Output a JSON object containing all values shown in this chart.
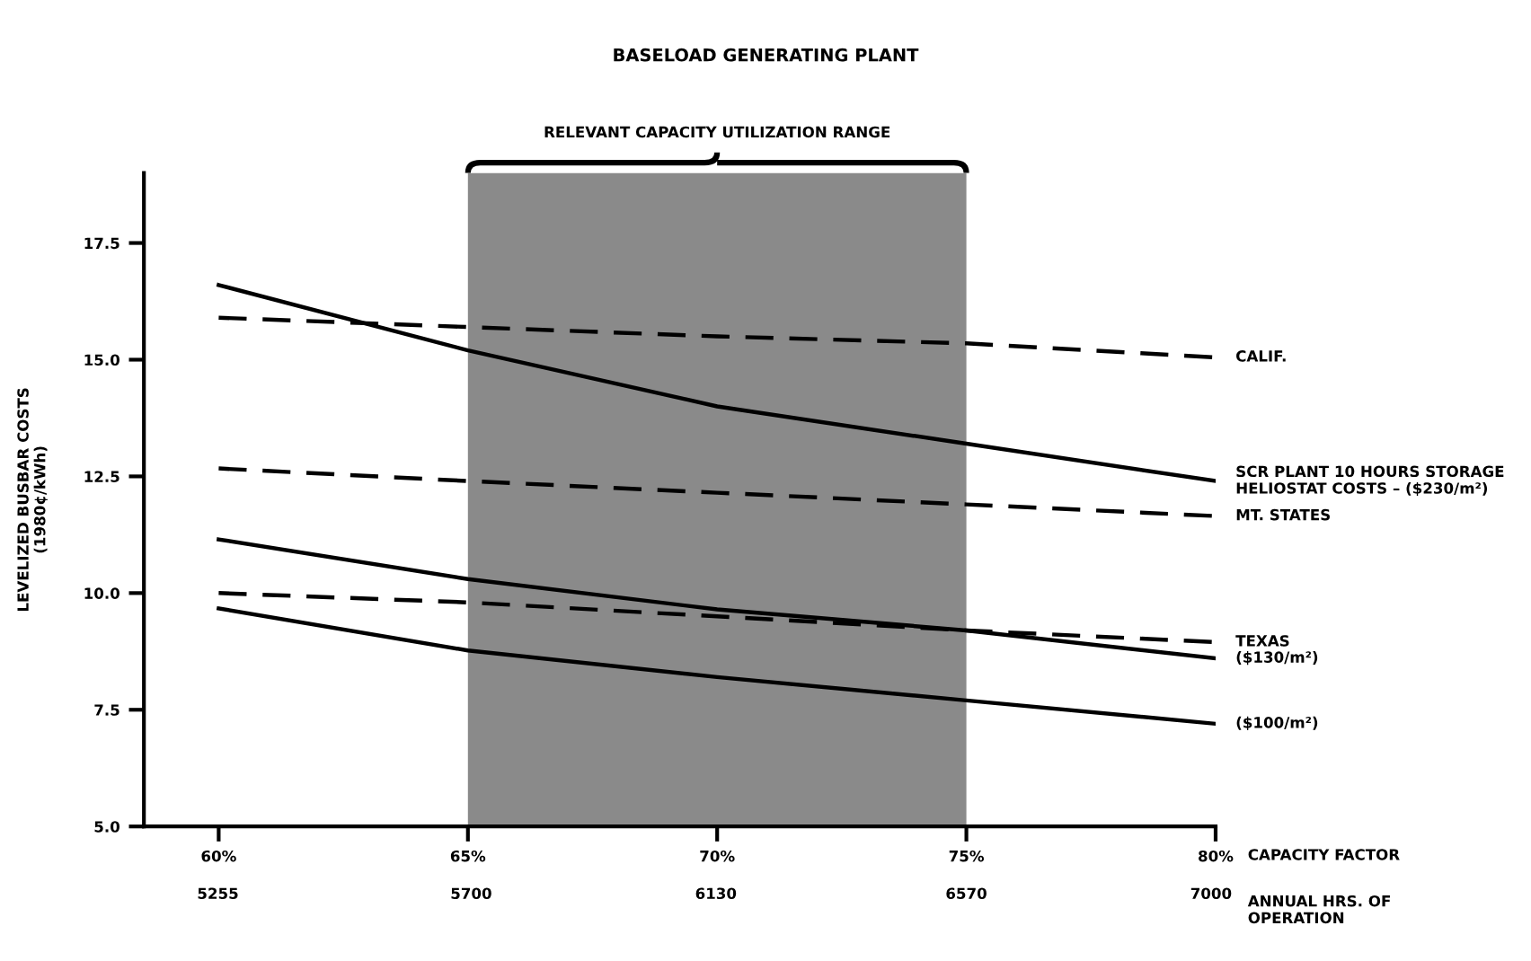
{
  "chart_data": {
    "type": "line",
    "title": "BASELOAD GENERATING PLANT",
    "ylabel": "LEVELIZED BUSBAR COSTS\n(1980¢/kWh)",
    "xlabel": "CAPACITY FACTOR",
    "x2label": "ANNUAL HRS. OF\nOPERATION",
    "x": [
      60,
      65,
      70,
      75,
      80
    ],
    "series": [
      {
        "name": "CALIF.",
        "color": "#000000",
        "line_style": "dashed",
        "values": [
          15.9,
          15.7,
          15.5,
          15.35,
          15.05
        ]
      },
      {
        "name": "SCR PLANT 10 HOURS STORAGE\nHELIOSTAT COSTS – ($230/m²)",
        "color": "#000000",
        "line_style": "solid",
        "values": [
          16.6,
          15.2,
          14.0,
          13.2,
          12.4
        ]
      },
      {
        "name": "MT. STATES",
        "color": "#000000",
        "line_style": "dashed",
        "values": [
          12.67,
          12.4,
          12.15,
          11.9,
          11.65
        ]
      },
      {
        "name": "TEXAS",
        "color": "#000000",
        "line_style": "dashed",
        "values": [
          10.0,
          9.8,
          9.5,
          9.2,
          8.95
        ]
      },
      {
        "name": "($130/m²)",
        "color": "#000000",
        "line_style": "solid",
        "values": [
          11.15,
          10.3,
          9.65,
          9.2,
          8.6
        ]
      },
      {
        "name": "($100/m²)",
        "color": "#000000",
        "line_style": "solid",
        "values": [
          9.67,
          8.77,
          8.2,
          7.7,
          7.2
        ]
      }
    ],
    "xlim": [
      58.5,
      80
    ],
    "ylim": [
      5,
      19
    ],
    "xticks": [
      {
        "value": 60,
        "label": "60%"
      },
      {
        "value": 65,
        "label": "65%"
      },
      {
        "value": 70,
        "label": "70%"
      },
      {
        "value": 75,
        "label": "75%"
      },
      {
        "value": 80,
        "label": "80%"
      }
    ],
    "x2lim": [
      5125,
      7008
    ],
    "x2ticks": [
      5255,
      5700,
      6130,
      6570,
      7000
    ],
    "yticks": [
      {
        "value": 5,
        "label": "5.0"
      },
      {
        "value": 7.5,
        "label": "7.5"
      },
      {
        "value": 10,
        "label": "10.0"
      },
      {
        "value": 12.5,
        "label": "12.5"
      },
      {
        "value": 15,
        "label": "15.0"
      },
      {
        "value": 17.5,
        "label": "17.5"
      }
    ],
    "bands": [
      {
        "axis": "x",
        "from": 65,
        "to": 75,
        "label": "RELEVANT CAPACITY UTILIZATION RANGE",
        "color": "#8a8a8a"
      }
    ],
    "grid": false,
    "legend": false
  }
}
